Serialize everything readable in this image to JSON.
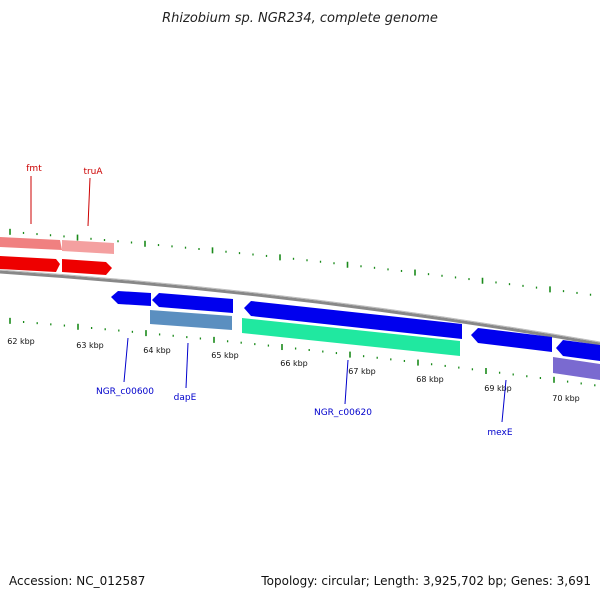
{
  "title": "Rhizobium sp. NGR234, complete genome",
  "footer": {
    "accession": "Accession: NC_012587",
    "summary": "Topology: circular; Length: 3,925,702 bp; Genes: 3,691"
  },
  "colors": {
    "backbone": "#7a7a7a",
    "tick": "#1a8a1a",
    "forward_label": "#cc0000",
    "reverse_label": "#0000cc",
    "cds_red": "#ee0000",
    "gene_pink": "#f08080",
    "cds_blue": "#0000ee",
    "gene_teal": "#5b8fc0",
    "gene_green": "#20e8a0",
    "gene_purple": "#7a6ad0"
  },
  "axis": {
    "unit": "kbp",
    "tick_labels": [
      "62 kbp",
      "63 kbp",
      "64 kbp",
      "65 kbp",
      "66 kbp",
      "67 kbp",
      "68 kbp",
      "69 kbp",
      "70 kbp"
    ]
  },
  "gene_labels": [
    {
      "text": "fmt",
      "strand": "forward"
    },
    {
      "text": "truA",
      "strand": "forward"
    },
    {
      "text": "NGR_c00600",
      "strand": "reverse"
    },
    {
      "text": "dapE",
      "strand": "reverse"
    },
    {
      "text": "NGR_c00620",
      "strand": "reverse"
    },
    {
      "text": "mexE",
      "strand": "reverse"
    }
  ]
}
